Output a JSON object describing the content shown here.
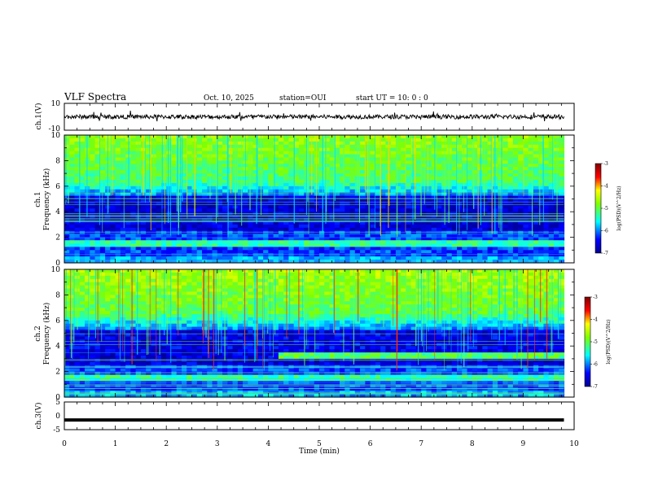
{
  "header": {
    "title": "VLF Spectra",
    "date": "Oct. 10, 2025",
    "station": "station=OUI",
    "start_ut": "start UT =  10: 0  : 0"
  },
  "chart_data": [
    {
      "type": "line",
      "name": "ch1-waveform",
      "ylabel": "ch.1(V)",
      "ylim": [
        -10,
        10
      ],
      "ytick_labels": [
        "10",
        "-10"
      ],
      "xlim": [
        0,
        10
      ],
      "level": 0,
      "color": "#000000"
    },
    {
      "type": "heatmap",
      "name": "ch1-spectrogram",
      "ylabel_lines": [
        "ch.1",
        "Frequency (kHz)"
      ],
      "ylim": [
        0,
        10
      ],
      "ytick_labels": [
        "0",
        "2",
        "4",
        "6",
        "8",
        "10"
      ],
      "xlim": [
        0,
        10
      ],
      "data_end_min": 9.8,
      "colorbar": {
        "label": "log(PSD)(V^2/Hz)",
        "range": [
          -7,
          -3
        ],
        "tick_labels": [
          "-3",
          "-4",
          "-5",
          "-6",
          "-7"
        ]
      }
    },
    {
      "type": "heatmap",
      "name": "ch2-spectrogram",
      "ylabel_lines": [
        "ch.2",
        "Frequency (kHz)"
      ],
      "ylim": [
        0,
        10
      ],
      "ytick_labels": [
        "0",
        "2",
        "4",
        "6",
        "8",
        "10"
      ],
      "xlim": [
        0,
        10
      ],
      "data_end_min": 9.8,
      "band_3khz_start_min": 4.2,
      "colorbar": {
        "label": "log(PSD)(V^2/Hz)",
        "range": [
          -7,
          -3
        ],
        "tick_labels": [
          "-3",
          "-4",
          "-5",
          "-6",
          "-7"
        ]
      }
    },
    {
      "type": "line",
      "name": "ch3-waveform",
      "ylabel": "ch.3(V)",
      "ylim": [
        -5,
        5
      ],
      "ytick_labels": [
        "5",
        "0",
        "-5"
      ],
      "xlim": [
        0,
        10
      ],
      "level": -1.5,
      "color": "#000000"
    }
  ],
  "xaxis": {
    "label": "Time (min)",
    "tick_labels": [
      "0",
      "1",
      "2",
      "3",
      "4",
      "5",
      "6",
      "7",
      "8",
      "9",
      "10"
    ]
  },
  "colors": {
    "background": "#ffffff",
    "axes": "#000000",
    "colormap": [
      "#00008f",
      "#0000ff",
      "#00ffff",
      "#80ff00",
      "#ffff00",
      "#ff0000",
      "#7f0000"
    ]
  }
}
